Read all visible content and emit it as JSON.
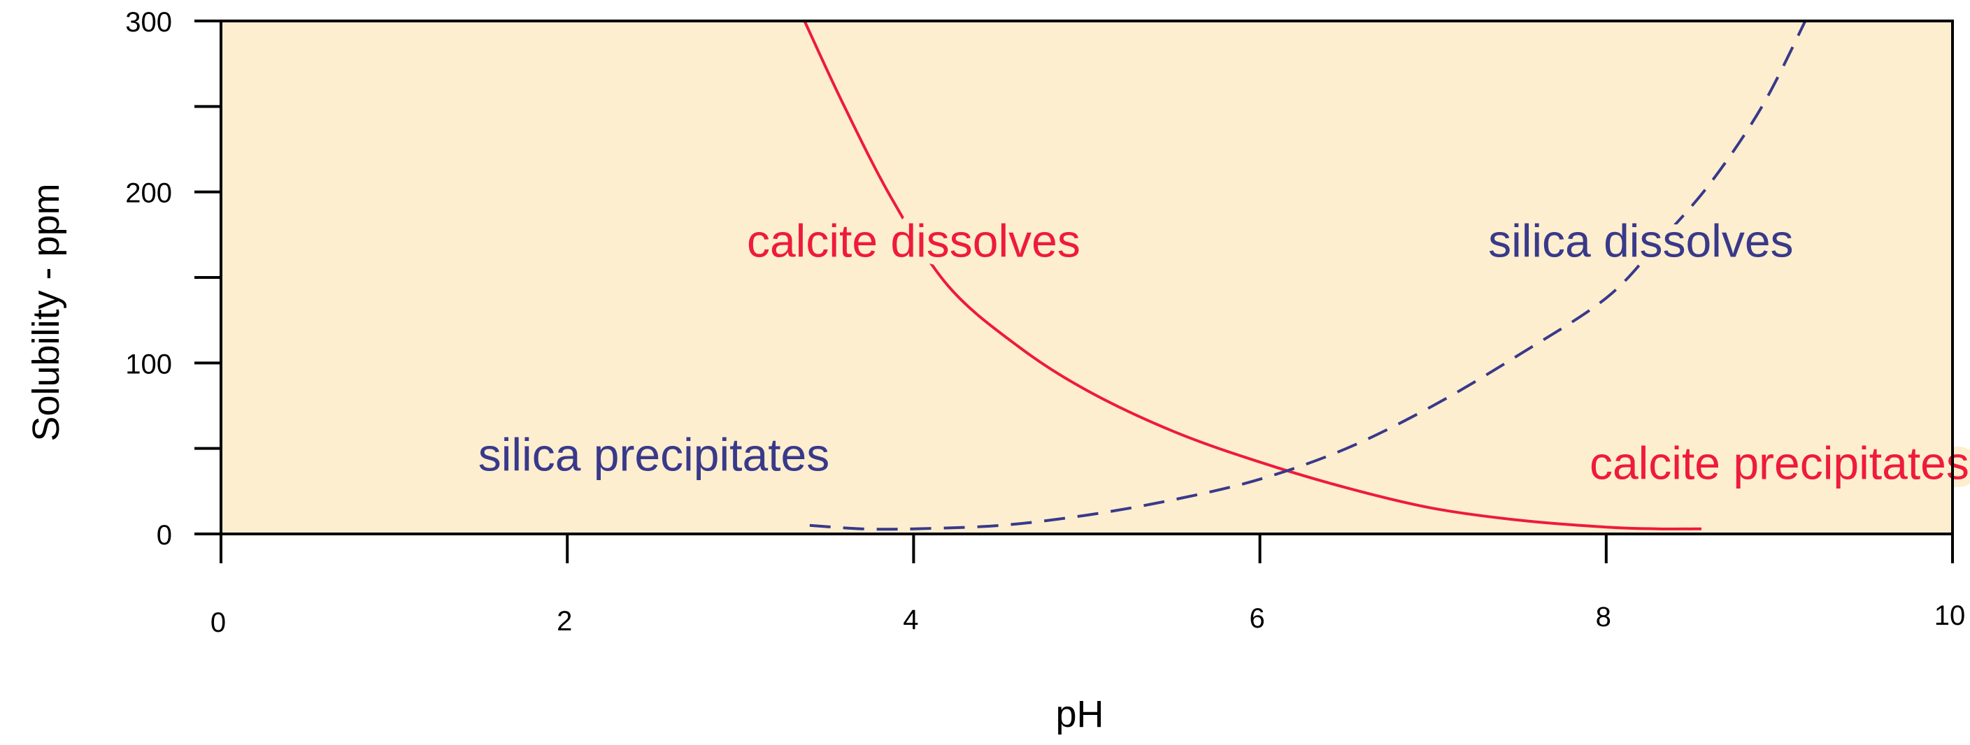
{
  "chart_data": {
    "type": "line",
    "title": "",
    "xlabel": "pH",
    "ylabel": "Solubility - ppm",
    "xlim": [
      0,
      10
    ],
    "ylim": [
      0,
      300
    ],
    "x_ticks": [
      0,
      2,
      4,
      6,
      8,
      10
    ],
    "y_ticks_labeled": [
      0,
      100,
      200,
      300
    ],
    "y_ticks_minor": [
      50,
      150,
      250
    ],
    "grid": false,
    "legend": "none",
    "plot_background": "#fdeed0",
    "series": [
      {
        "color": "#ee1b3a",
        "style": "solid",
        "x": [
          3.37,
          3.6,
          3.88,
          4.2,
          4.6,
          5.0,
          5.5,
          6.0,
          6.5,
          7.0,
          7.5,
          8.0,
          8.3,
          8.55
        ],
        "y": [
          300,
          250,
          195,
          145,
          110,
          84,
          60,
          42,
          27,
          15,
          8,
          4,
          3,
          3
        ]
      },
      {
        "color": "#39398a",
        "style": "dashed",
        "x": [
          3.4,
          3.7,
          4.0,
          4.5,
          5.0,
          5.5,
          6.0,
          6.5,
          7.0,
          7.5,
          8.0,
          8.3,
          8.6,
          8.9,
          9.15
        ],
        "y": [
          5,
          3,
          3,
          5,
          11,
          20,
          32,
          50,
          75,
          105,
          138,
          170,
          205,
          250,
          300
        ]
      }
    ],
    "annotations": [
      {
        "text": "calcite dissolves",
        "color": "#ee1b3a",
        "x": 4.0,
        "y": 162
      },
      {
        "text": "silica dissolves",
        "color": "#39398a",
        "x": 8.2,
        "y": 162
      },
      {
        "text": "silica precipitates",
        "color": "#39398a",
        "x": 2.5,
        "y": 37
      },
      {
        "text": "calcite precipitates",
        "color": "#ee1b3a",
        "x": 9.0,
        "y": 32
      }
    ]
  }
}
